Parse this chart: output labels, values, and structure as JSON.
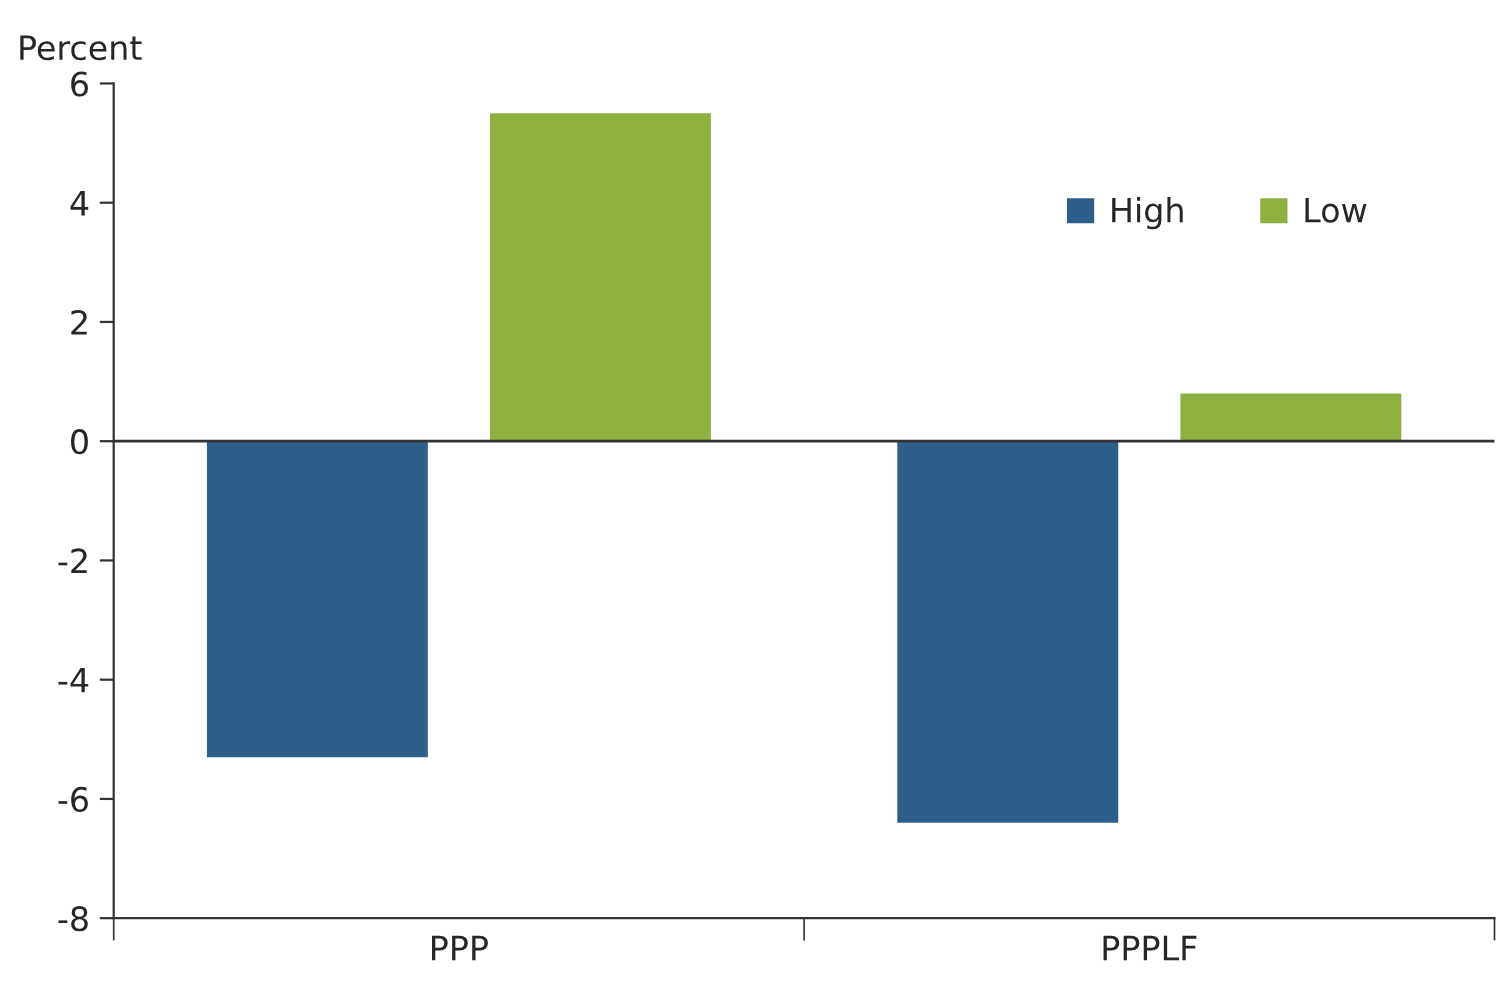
{
  "chart_data": {
    "type": "bar",
    "ylabel": "Percent",
    "categories": [
      "PPP",
      "PPPLF"
    ],
    "series": [
      {
        "name": "High",
        "color": "#2e5f8a",
        "values": [
          -5.3,
          -6.4
        ]
      },
      {
        "name": "Low",
        "color": "#8db040",
        "values": [
          5.5,
          0.8
        ]
      }
    ],
    "ylim": [
      -8,
      6
    ],
    "yticks": [
      {
        "value": -8,
        "label": "-8"
      },
      {
        "value": -6,
        "label": "-6"
      },
      {
        "value": -4,
        "label": "-4"
      },
      {
        "value": -2,
        "label": "-2"
      },
      0,
      2,
      4,
      6
    ],
    "ref_lines": [
      {
        "axis": "y",
        "value": 0,
        "color": "#333333"
      }
    ],
    "legend": "top right"
  }
}
